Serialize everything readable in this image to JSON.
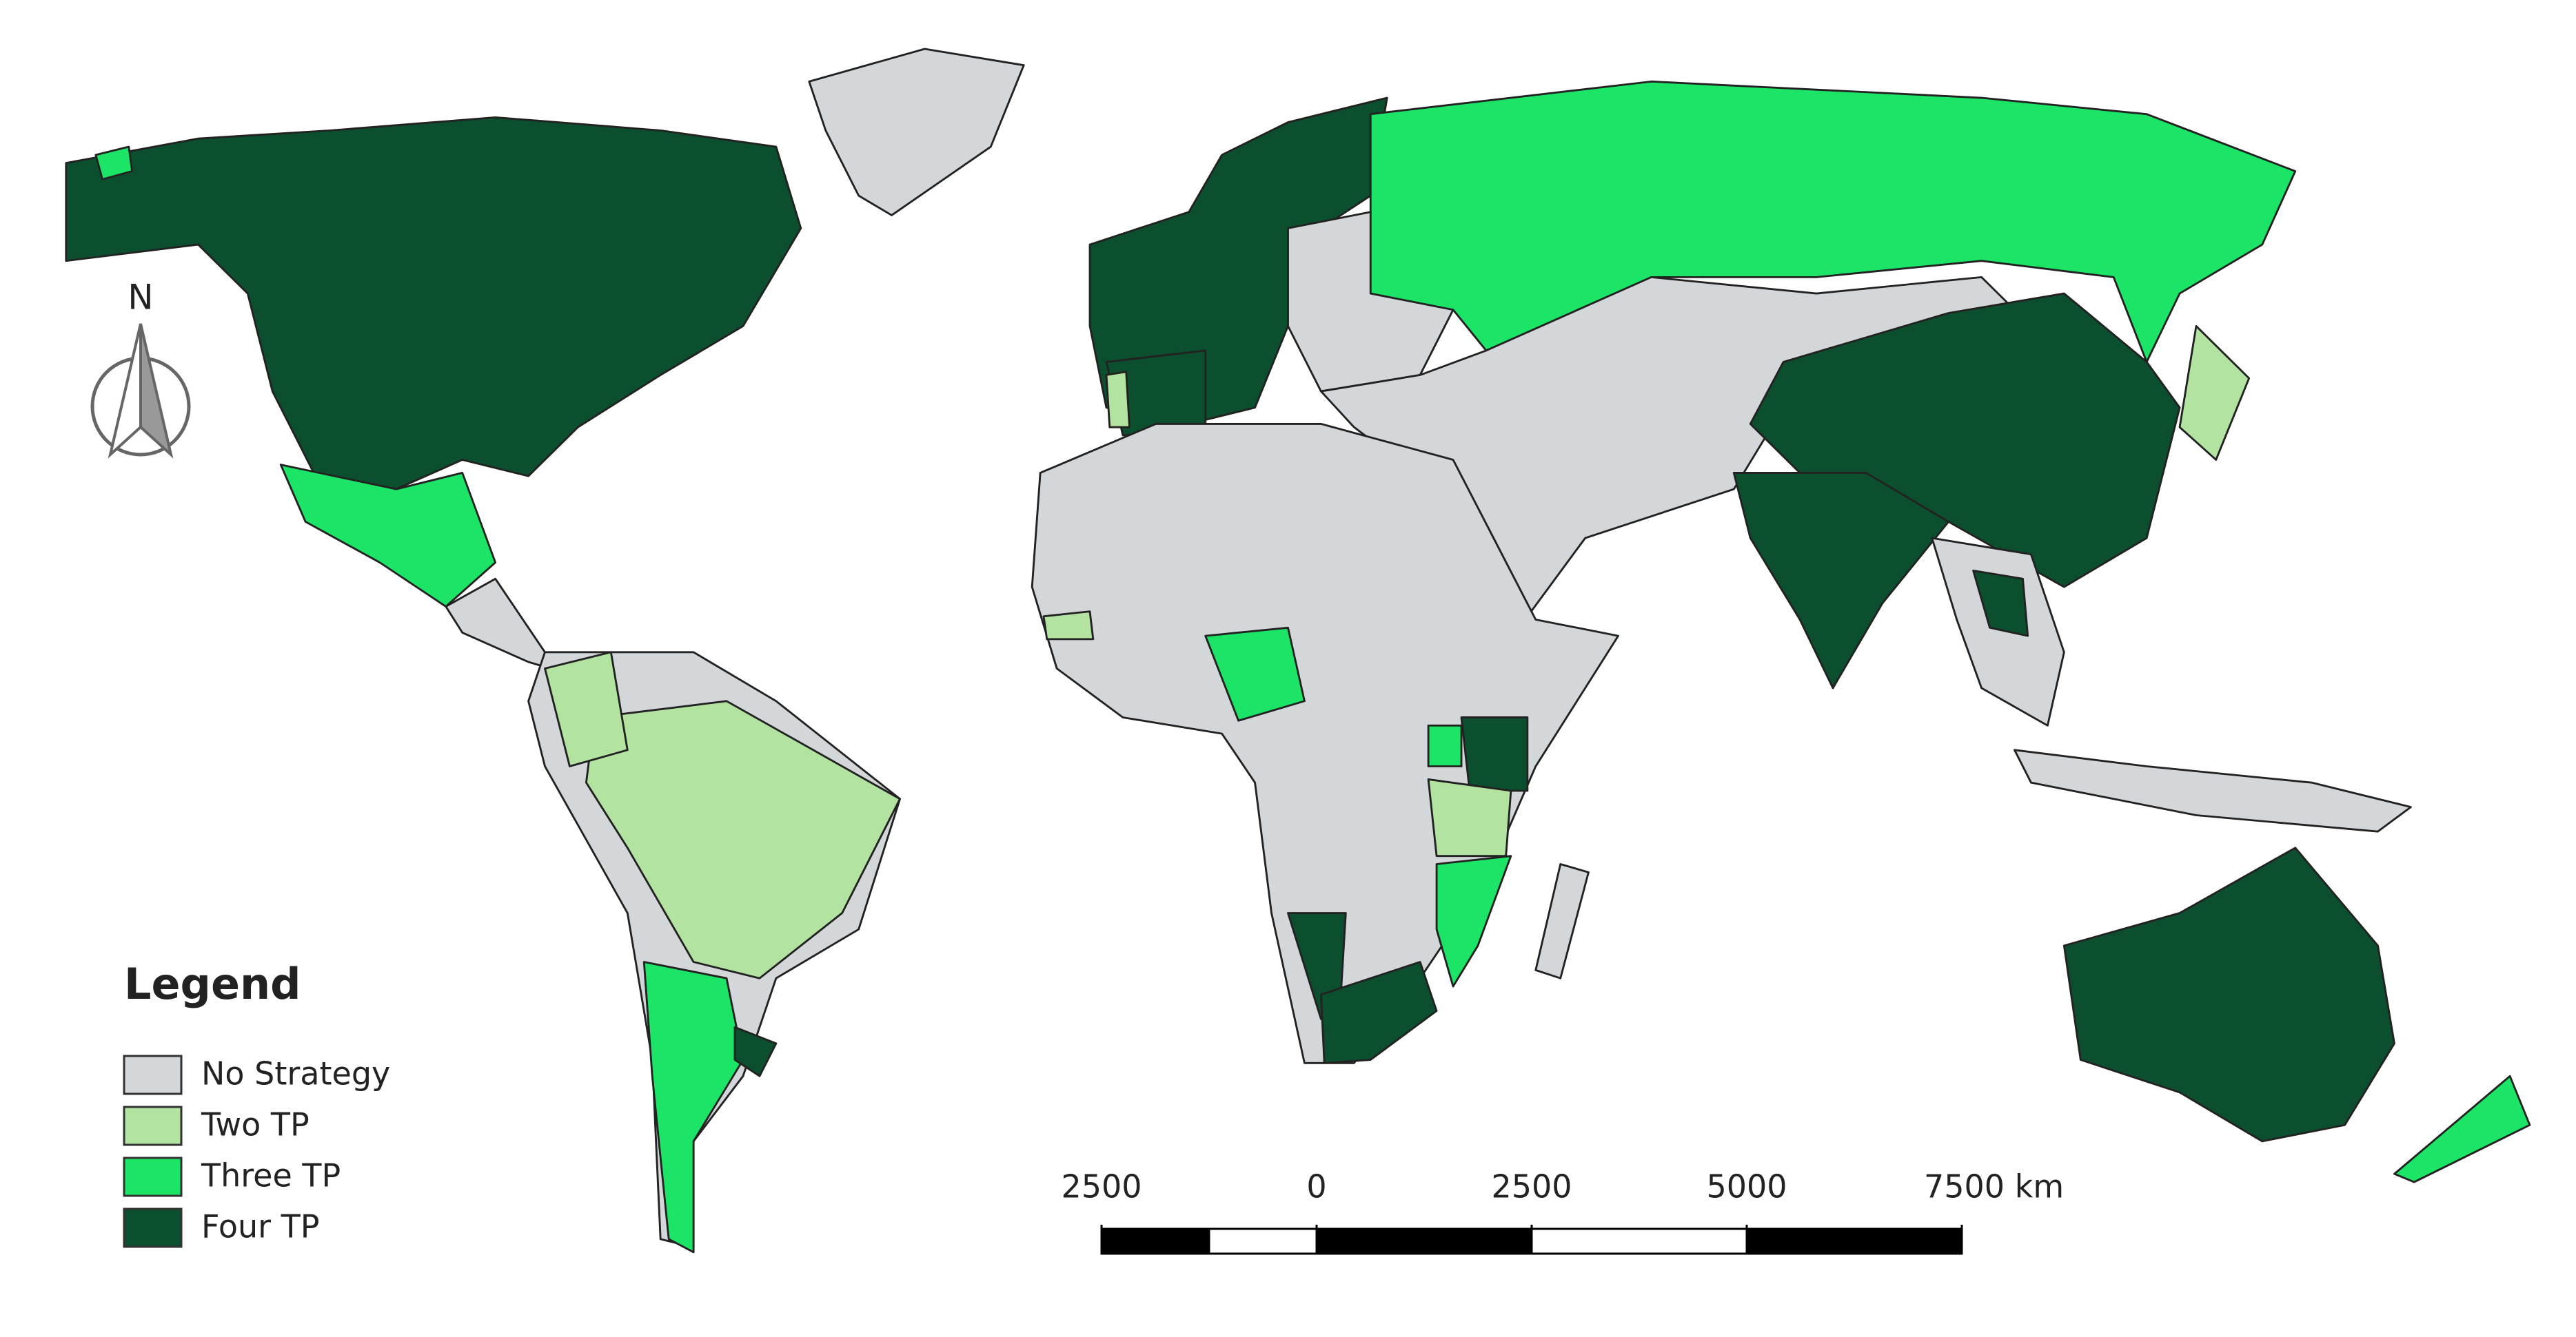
{
  "map": {
    "north_label": "N",
    "legend": {
      "title": "Legend",
      "items": [
        {
          "label": "No Strategy",
          "color": "#d3d7d9"
        },
        {
          "label": "Two TP",
          "color": "#b3e3a0"
        },
        {
          "label": "Three TP",
          "color": "#1ce466"
        },
        {
          "label": "Four TP",
          "color": "#0b4f2e"
        }
      ]
    },
    "scale_bar": {
      "lim": [
        -2500,
        7500
      ],
      "ticks": [
        {
          "value": -2500,
          "label": "2500"
        },
        0,
        2500,
        5000,
        {
          "value": 7500,
          "label": "7500 km"
        }
      ]
    }
  }
}
